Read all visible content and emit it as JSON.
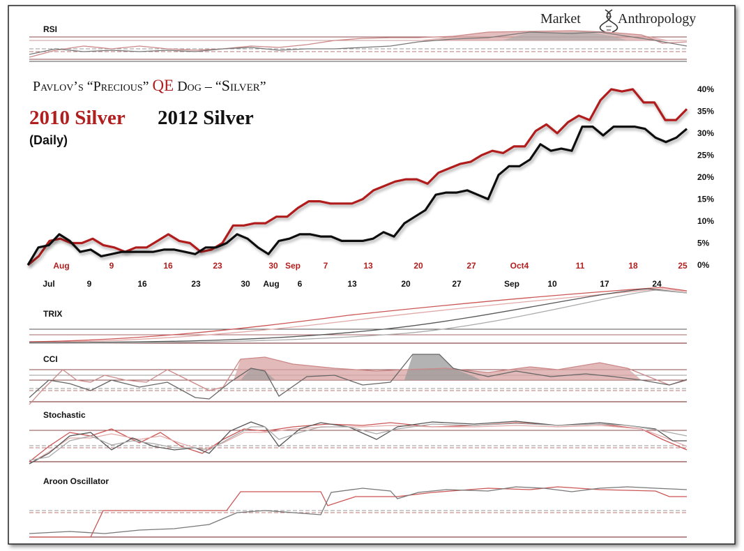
{
  "brand": {
    "word1": "Market",
    "word2": "Anthropology"
  },
  "headline": {
    "pre": "Pavlov’s “Precious” ",
    "qe": "QE",
    "mid": " Dog – “",
    "silver": "Silver",
    "post": "”"
  },
  "legend": {
    "series_2010": "2010 Silver",
    "series_2012": "2012 Silver",
    "frequency": "(Daily)"
  },
  "colors": {
    "series_2010": "#b01e1e",
    "series_2012": "#111111",
    "frame": "#222222",
    "light_red": "#d89a9a"
  },
  "indicators": {
    "rsi": "RSI",
    "trix": "TRIX",
    "cci": "CCI",
    "stochastic": "Stochastic",
    "aroon": "Aroon Oscillator"
  },
  "chart_data": {
    "type": "line",
    "y_ticks": [
      "40%",
      "35%",
      "30%",
      "25%",
      "20%",
      "15%",
      "10%",
      "5%",
      "0%"
    ],
    "ylim": [
      0,
      40
    ],
    "x_ticks_2010": [
      "Aug",
      "9",
      "16",
      "23",
      "30",
      "Sep",
      "7",
      "13",
      "20",
      "27",
      "Oct4",
      "11",
      "18",
      "25"
    ],
    "x_ticks_2012": [
      "Jul",
      "9",
      "16",
      "23",
      "30",
      "Aug",
      "6",
      "13",
      "20",
      "27",
      "Sep",
      "10",
      "17",
      "24"
    ],
    "series": [
      {
        "name": "2010 Silver",
        "values": [
          0,
          2,
          5.5,
          6,
          5,
          5,
          6,
          4.5,
          4,
          3,
          4,
          4,
          5.5,
          7,
          5.5,
          5,
          3,
          3.5,
          5,
          9,
          9,
          9.5,
          9.5,
          11,
          11,
          13,
          14.5,
          14.5,
          14,
          14,
          14,
          15,
          17,
          18,
          19,
          19.5,
          19.5,
          18.5,
          21,
          22,
          23,
          23.5,
          25,
          26,
          25.5,
          27,
          27,
          30.5,
          32,
          30,
          32.5,
          34,
          33,
          37.5,
          40,
          39.5,
          40,
          37,
          37,
          33,
          33,
          35.5
        ]
      },
      {
        "name": "2012 Silver",
        "values": [
          0,
          4,
          4.5,
          7,
          5.5,
          3,
          3.5,
          2,
          2.5,
          3,
          3,
          3,
          3,
          3.5,
          3.5,
          3,
          2.5,
          4,
          4,
          5,
          7,
          6,
          4,
          2.5,
          5.5,
          6,
          7,
          7,
          6.5,
          6.5,
          5.5,
          5.5,
          5.5,
          6,
          7.5,
          6.5,
          9.5,
          11,
          12.5,
          16,
          16.5,
          16.5,
          17,
          16,
          15,
          20.5,
          22.5,
          22.5,
          24,
          27.5,
          26,
          26.5,
          26,
          31.5,
          31.5,
          29.5,
          31.5,
          31.5,
          31.5,
          31,
          29,
          28,
          29,
          31
        ]
      }
    ]
  }
}
